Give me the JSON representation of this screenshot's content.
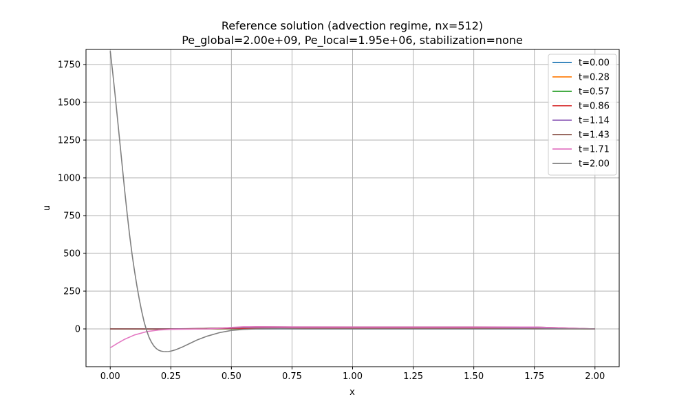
{
  "chart_data": {
    "type": "line",
    "title": "Reference solution (advection regime, nx=512)",
    "subtitle": "Pe_global=2.00e+09, Pe_local=1.95e+06, stabilization=none",
    "xlabel": "x",
    "ylabel": "u",
    "xlim": [
      -0.1,
      2.1
    ],
    "ylim": [
      -250,
      1850
    ],
    "xticks": [
      0.0,
      0.25,
      0.5,
      0.75,
      1.0,
      1.25,
      1.5,
      1.75,
      2.0
    ],
    "xtick_labels": [
      "0.00",
      "0.25",
      "0.50",
      "0.75",
      "1.00",
      "1.25",
      "1.50",
      "1.75",
      "2.00"
    ],
    "yticks": [
      0,
      250,
      500,
      750,
      1000,
      1250,
      1500,
      1750
    ],
    "ytick_labels": [
      "0",
      "250",
      "500",
      "750",
      "1000",
      "1250",
      "1500",
      "1750"
    ],
    "grid": true,
    "legend_position": "top-right",
    "series": [
      {
        "name": "t=0.00",
        "color": "#1f77b4",
        "x": [
          0,
          0.5,
          1.0,
          1.5,
          2.0
        ],
        "y": [
          0,
          0,
          0,
          0,
          0
        ]
      },
      {
        "name": "t=0.28",
        "color": "#ff7f0e",
        "x": [
          0,
          0.25,
          0.5,
          0.75,
          1.0,
          1.25,
          1.5,
          1.75,
          2.0
        ],
        "y": [
          0,
          0,
          1,
          2,
          2,
          2,
          2,
          1,
          0
        ]
      },
      {
        "name": "t=0.57",
        "color": "#2ca02c",
        "x": [
          0,
          0.25,
          0.5,
          0.75,
          1.0,
          1.25,
          1.5,
          1.75,
          2.0
        ],
        "y": [
          0,
          0,
          2,
          4,
          4,
          4,
          4,
          3,
          0
        ]
      },
      {
        "name": "t=0.86",
        "color": "#d62728",
        "x": [
          0,
          0.25,
          0.5,
          0.75,
          1.0,
          1.25,
          1.5,
          1.75,
          2.0
        ],
        "y": [
          0,
          0,
          3,
          6,
          6,
          6,
          6,
          5,
          0
        ]
      },
      {
        "name": "t=1.14",
        "color": "#9467bd",
        "x": [
          0,
          0.25,
          0.5,
          0.6,
          0.75,
          1.0,
          1.25,
          1.5,
          1.75,
          2.0
        ],
        "y": [
          0,
          0,
          6,
          10,
          10,
          10,
          10,
          10,
          8,
          0
        ]
      },
      {
        "name": "t=1.43",
        "color": "#8c564b",
        "x": [
          0,
          0.25,
          0.5,
          0.6,
          0.75,
          1.0,
          1.25,
          1.5,
          1.75,
          1.85,
          2.0
        ],
        "y": [
          0,
          -2,
          8,
          14,
          13,
          13,
          13,
          13,
          12,
          8,
          0
        ]
      },
      {
        "name": "t=1.71",
        "color": "#e377c2",
        "x": [
          0,
          0.03,
          0.06,
          0.1,
          0.15,
          0.2,
          0.25,
          0.3,
          0.35,
          0.4,
          0.45,
          0.5,
          0.55,
          0.6,
          0.75,
          1.0,
          1.25,
          1.5,
          1.75,
          1.85,
          2.0
        ],
        "y": [
          -125,
          -95,
          -68,
          -40,
          -18,
          -7,
          -3,
          -2,
          -1,
          0,
          4,
          10,
          14,
          14,
          13,
          12,
          12,
          12,
          12,
          8,
          0
        ]
      },
      {
        "name": "t=2.00",
        "color": "#7f7f7f",
        "x": [
          0,
          0.01,
          0.02,
          0.03,
          0.04,
          0.05,
          0.06,
          0.07,
          0.08,
          0.09,
          0.1,
          0.11,
          0.12,
          0.13,
          0.14,
          0.15,
          0.16,
          0.17,
          0.18,
          0.19,
          0.2,
          0.21,
          0.22,
          0.23,
          0.24,
          0.25,
          0.27,
          0.3,
          0.33,
          0.36,
          0.4,
          0.45,
          0.5,
          0.55,
          0.6,
          0.7,
          0.8,
          1.0,
          1.25,
          1.5,
          1.75,
          2.0
        ],
        "y": [
          1840,
          1700,
          1550,
          1390,
          1230,
          1070,
          910,
          760,
          620,
          495,
          385,
          285,
          195,
          115,
          45,
          -10,
          -55,
          -88,
          -113,
          -130,
          -141,
          -147,
          -150,
          -151,
          -150,
          -147,
          -138,
          -118,
          -95,
          -72,
          -48,
          -25,
          -10,
          -3,
          0,
          1,
          0,
          0,
          0,
          0,
          0,
          0
        ]
      }
    ]
  }
}
